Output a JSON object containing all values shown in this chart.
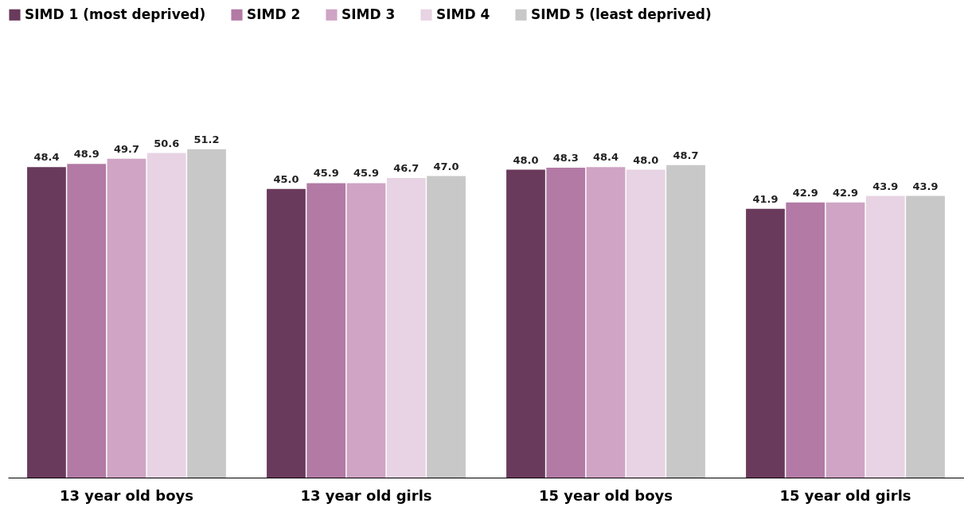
{
  "chart_data": {
    "type": "bar",
    "categories": [
      "13 year old boys",
      "13 year old girls",
      "15 year old boys",
      "15 year old girls"
    ],
    "series": [
      {
        "name": "SIMD 1 (most deprived)",
        "color": "#6a3a5c",
        "values": [
          48.4,
          45.0,
          48.0,
          41.9
        ],
        "value_labels": [
          "48.4",
          "45.0",
          "48.0",
          "41.9"
        ]
      },
      {
        "name": "SIMD 2",
        "color": "#b27aa5",
        "values": [
          48.9,
          45.9,
          48.3,
          42.9
        ],
        "value_labels": [
          "48.9",
          "45.9",
          "48.3",
          "42.9"
        ]
      },
      {
        "name": "SIMD 3",
        "color": "#cfa4c5",
        "values": [
          49.7,
          45.9,
          48.4,
          42.9
        ],
        "value_labels": [
          "49.7",
          "45.9",
          "48.4",
          "42.9"
        ]
      },
      {
        "name": "SIMD 4",
        "color": "#e7d3e3",
        "values": [
          50.6,
          46.7,
          48.0,
          43.9
        ],
        "value_labels": [
          "50.6",
          "46.7",
          "48.0",
          "43.9"
        ]
      },
      {
        "name": "SIMD 5 (least deprived)",
        "color": "#c8c8c8",
        "values": [
          51.2,
          47.0,
          48.7,
          43.9
        ],
        "value_labels": [
          "51.2",
          "47.0",
          "48.7",
          "43.9"
        ]
      }
    ],
    "legend": "top",
    "grid": false,
    "tick_labels": "x"
  }
}
